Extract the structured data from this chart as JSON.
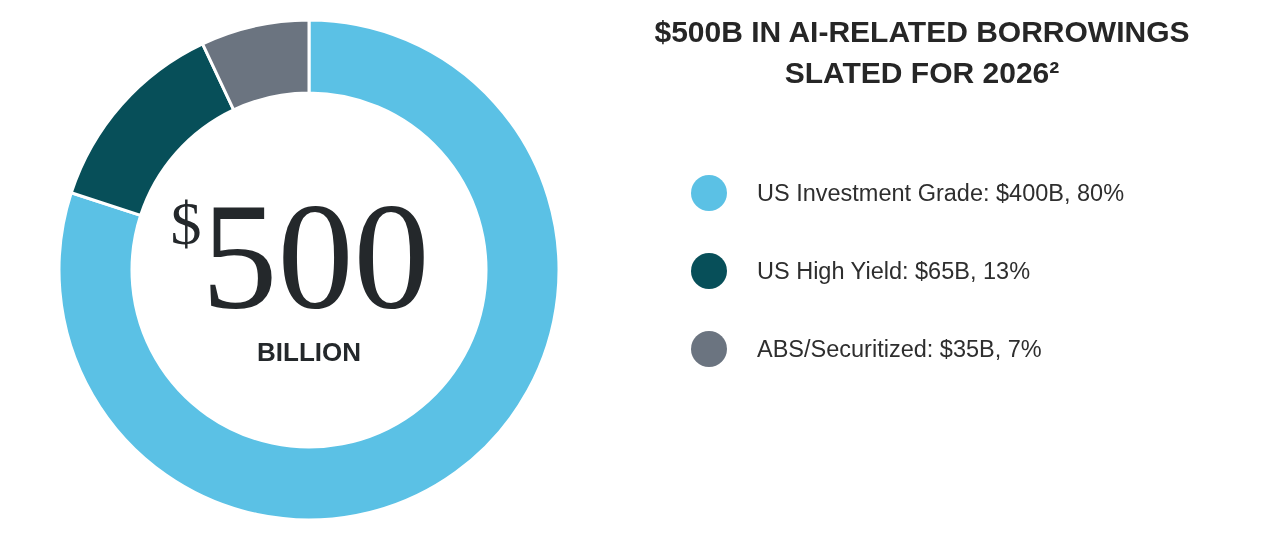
{
  "chart_data": {
    "type": "donut",
    "title": "$500B IN AI-RELATED BORROWINGS SLATED FOR 2026²",
    "categories": [
      "US Investment Grade: $400B, 80%",
      "US High Yield: $65B, 13%",
      "ABS/Securitized: $35B, 7%"
    ],
    "values": [
      80,
      13,
      7
    ],
    "colors": [
      "#5bc1e5",
      "#074f59",
      "#6b7480"
    ],
    "legend": "right",
    "annotations": [
      "$^{$}$500",
      "BILLION"
    ]
  }
}
